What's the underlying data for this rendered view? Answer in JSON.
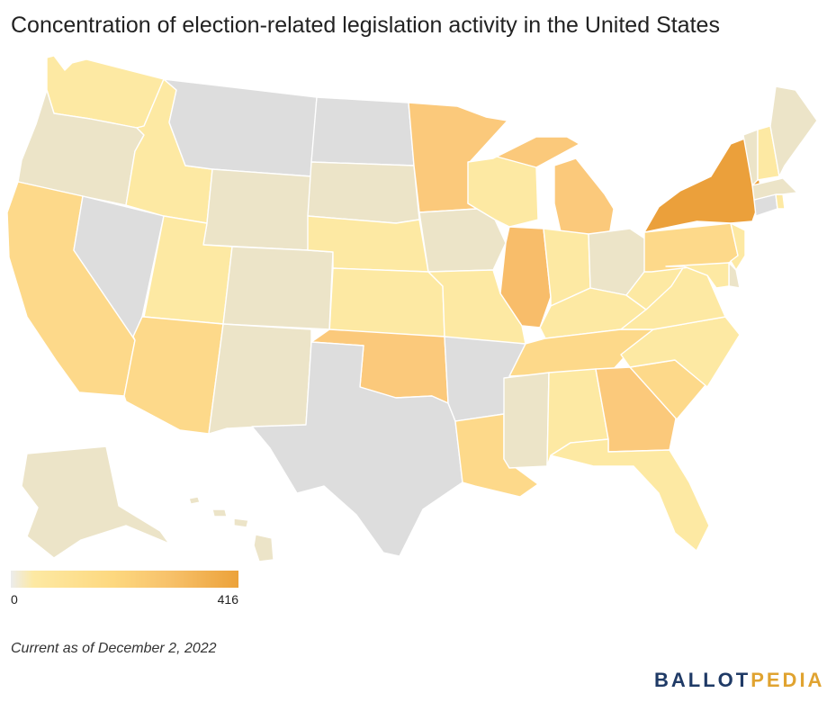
{
  "title": "Concentration of election-related legislation activity in the United States",
  "legend": {
    "min": "0",
    "max": "416"
  },
  "footnote": "Current as of December 2, 2022",
  "brand": {
    "part1": "BALLOT",
    "part2": "PEDIA"
  },
  "colors": {
    "none": "#dddddd",
    "very_low": "#ece4c8",
    "low": "#fde9a3",
    "medium_low": "#fdd98a",
    "medium": "#fbc97b",
    "medium_high": "#f8bd6a",
    "high": "#eba03b",
    "highest": "#e08a24"
  },
  "states": [
    {
      "abbr": "WA",
      "level": "low"
    },
    {
      "abbr": "OR",
      "level": "very_low"
    },
    {
      "abbr": "CA",
      "level": "medium_low"
    },
    {
      "abbr": "NV",
      "level": "none"
    },
    {
      "abbr": "ID",
      "level": "low"
    },
    {
      "abbr": "MT",
      "level": "none"
    },
    {
      "abbr": "WY",
      "level": "very_low"
    },
    {
      "abbr": "UT",
      "level": "low"
    },
    {
      "abbr": "AZ",
      "level": "medium_low"
    },
    {
      "abbr": "CO",
      "level": "very_low"
    },
    {
      "abbr": "NM",
      "level": "very_low"
    },
    {
      "abbr": "ND",
      "level": "none"
    },
    {
      "abbr": "SD",
      "level": "very_low"
    },
    {
      "abbr": "NE",
      "level": "low"
    },
    {
      "abbr": "KS",
      "level": "low"
    },
    {
      "abbr": "OK",
      "level": "medium"
    },
    {
      "abbr": "TX",
      "level": "none"
    },
    {
      "abbr": "MN",
      "level": "medium"
    },
    {
      "abbr": "IA",
      "level": "very_low"
    },
    {
      "abbr": "MO",
      "level": "low"
    },
    {
      "abbr": "AR",
      "level": "none"
    },
    {
      "abbr": "LA",
      "level": "medium_low"
    },
    {
      "abbr": "WI",
      "level": "low"
    },
    {
      "abbr": "IL",
      "level": "medium_high"
    },
    {
      "abbr": "MI",
      "level": "medium"
    },
    {
      "abbr": "IN",
      "level": "low"
    },
    {
      "abbr": "OH",
      "level": "very_low"
    },
    {
      "abbr": "KY",
      "level": "low"
    },
    {
      "abbr": "TN",
      "level": "medium_low"
    },
    {
      "abbr": "MS",
      "level": "very_low"
    },
    {
      "abbr": "AL",
      "level": "low"
    },
    {
      "abbr": "GA",
      "level": "medium"
    },
    {
      "abbr": "FL",
      "level": "low"
    },
    {
      "abbr": "SC",
      "level": "medium_low"
    },
    {
      "abbr": "NC",
      "level": "low"
    },
    {
      "abbr": "VA",
      "level": "low"
    },
    {
      "abbr": "WV",
      "level": "low"
    },
    {
      "abbr": "PA",
      "level": "medium_low"
    },
    {
      "abbr": "NY",
      "level": "high"
    },
    {
      "abbr": "NJ",
      "level": "low"
    },
    {
      "abbr": "DE",
      "level": "very_low"
    },
    {
      "abbr": "MD",
      "level": "low"
    },
    {
      "abbr": "CT",
      "level": "none"
    },
    {
      "abbr": "RI",
      "level": "low"
    },
    {
      "abbr": "MA",
      "level": "very_low"
    },
    {
      "abbr": "VT",
      "level": "very_low"
    },
    {
      "abbr": "NH",
      "level": "low"
    },
    {
      "abbr": "ME",
      "level": "very_low"
    },
    {
      "abbr": "AK",
      "level": "very_low"
    },
    {
      "abbr": "HI",
      "level": "very_low"
    }
  ]
}
